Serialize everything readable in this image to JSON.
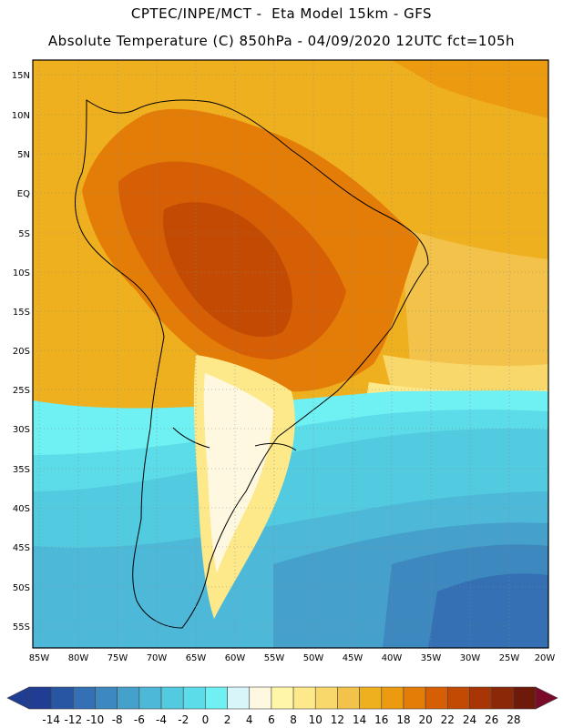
{
  "header": {
    "line1": "CPTEC/INPE/MCT -  Eta Model 15km - GFS",
    "line2": "Absolute Temperature (C) 850hPa - 04/09/2020 12UTC fct=105h"
  },
  "map": {
    "lat_labels": [
      "15N",
      "10N",
      "5N",
      "EQ",
      "5S",
      "10S",
      "15S",
      "20S",
      "25S",
      "30S",
      "35S",
      "40S",
      "45S",
      "50S",
      "55S"
    ],
    "lon_labels": [
      "85W",
      "80W",
      "75W",
      "70W",
      "65W",
      "60W",
      "55W",
      "50W",
      "45W",
      "40W",
      "35W",
      "30W",
      "25W",
      "20W"
    ]
  },
  "colorbar": {
    "labels": [
      "-14",
      "-12",
      "-10",
      "-8",
      "-6",
      "-4",
      "-2",
      "0",
      "2",
      "4",
      "6",
      "8",
      "10",
      "12",
      "14",
      "16",
      "18",
      "20",
      "22",
      "24",
      "26",
      "28"
    ],
    "colors": [
      "#1f3d93",
      "#2856a3",
      "#3470b3",
      "#3d88bf",
      "#45a0cb",
      "#4db8d8",
      "#52cae0",
      "#5cdce9",
      "#6ff0f2",
      "#d8f6fa",
      "#fff8e0",
      "#fff6a8",
      "#fde88a",
      "#f9d86b",
      "#f3c24a",
      "#efb020",
      "#ec9a10",
      "#e47d08",
      "#d65e05",
      "#c24a03",
      "#a73505",
      "#8a2808",
      "#6e1a0a"
    ]
  }
}
